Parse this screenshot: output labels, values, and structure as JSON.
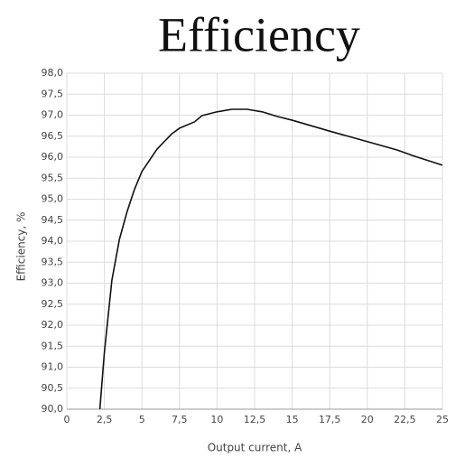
{
  "chart_data": {
    "type": "line",
    "title": "Efficiency",
    "x_label": "Output current, A",
    "y_label": "Efficiency, %",
    "x": [
      2.2,
      2.5,
      3,
      3.5,
      4,
      4.5,
      5,
      6,
      7,
      7.5,
      8.5,
      9,
      10,
      11,
      12,
      13,
      14,
      15,
      17.5,
      20,
      22,
      23,
      25
    ],
    "values": [
      90.0,
      91.35,
      93.07,
      94.04,
      94.69,
      95.23,
      95.66,
      96.19,
      96.56,
      96.69,
      96.84,
      96.99,
      97.08,
      97.14,
      97.14,
      97.08,
      96.97,
      96.88,
      96.62,
      96.37,
      96.17,
      96.04,
      95.81
    ],
    "color": "#111111",
    "xlim": [
      0,
      25
    ],
    "xticks": [
      0,
      {
        "value": 2.5,
        "label": "2,5"
      },
      5,
      {
        "value": 7.5,
        "label": "7,5"
      },
      10,
      {
        "value": 12.5,
        "label": "12,5"
      },
      15,
      {
        "value": 17.5,
        "label": "17,5"
      },
      20,
      {
        "value": 22.5,
        "label": "22,5"
      },
      25
    ],
    "ylim": [
      90,
      98
    ],
    "yticks": [
      {
        "value": 90,
        "label": "90,0"
      },
      {
        "value": 90.5,
        "label": "90,5"
      },
      {
        "value": 91,
        "label": "91,0"
      },
      {
        "value": 91.5,
        "label": "91,5"
      },
      {
        "value": 92,
        "label": "92,0"
      },
      {
        "value": 92.5,
        "label": "92,5"
      },
      {
        "value": 93,
        "label": "93,0"
      },
      {
        "value": 93.5,
        "label": "93,5"
      },
      {
        "value": 94,
        "label": "94,0"
      },
      {
        "value": 94.5,
        "label": "94,5"
      },
      {
        "value": 95,
        "label": "95,0"
      },
      {
        "value": 95.5,
        "label": "95,5"
      },
      {
        "value": 96,
        "label": "96,0"
      },
      {
        "value": 96.5,
        "label": "96,5"
      },
      {
        "value": 97,
        "label": "97,0"
      },
      {
        "value": 97.5,
        "label": "97,5"
      },
      {
        "value": 98,
        "label": "98,0"
      }
    ],
    "grid": true
  }
}
